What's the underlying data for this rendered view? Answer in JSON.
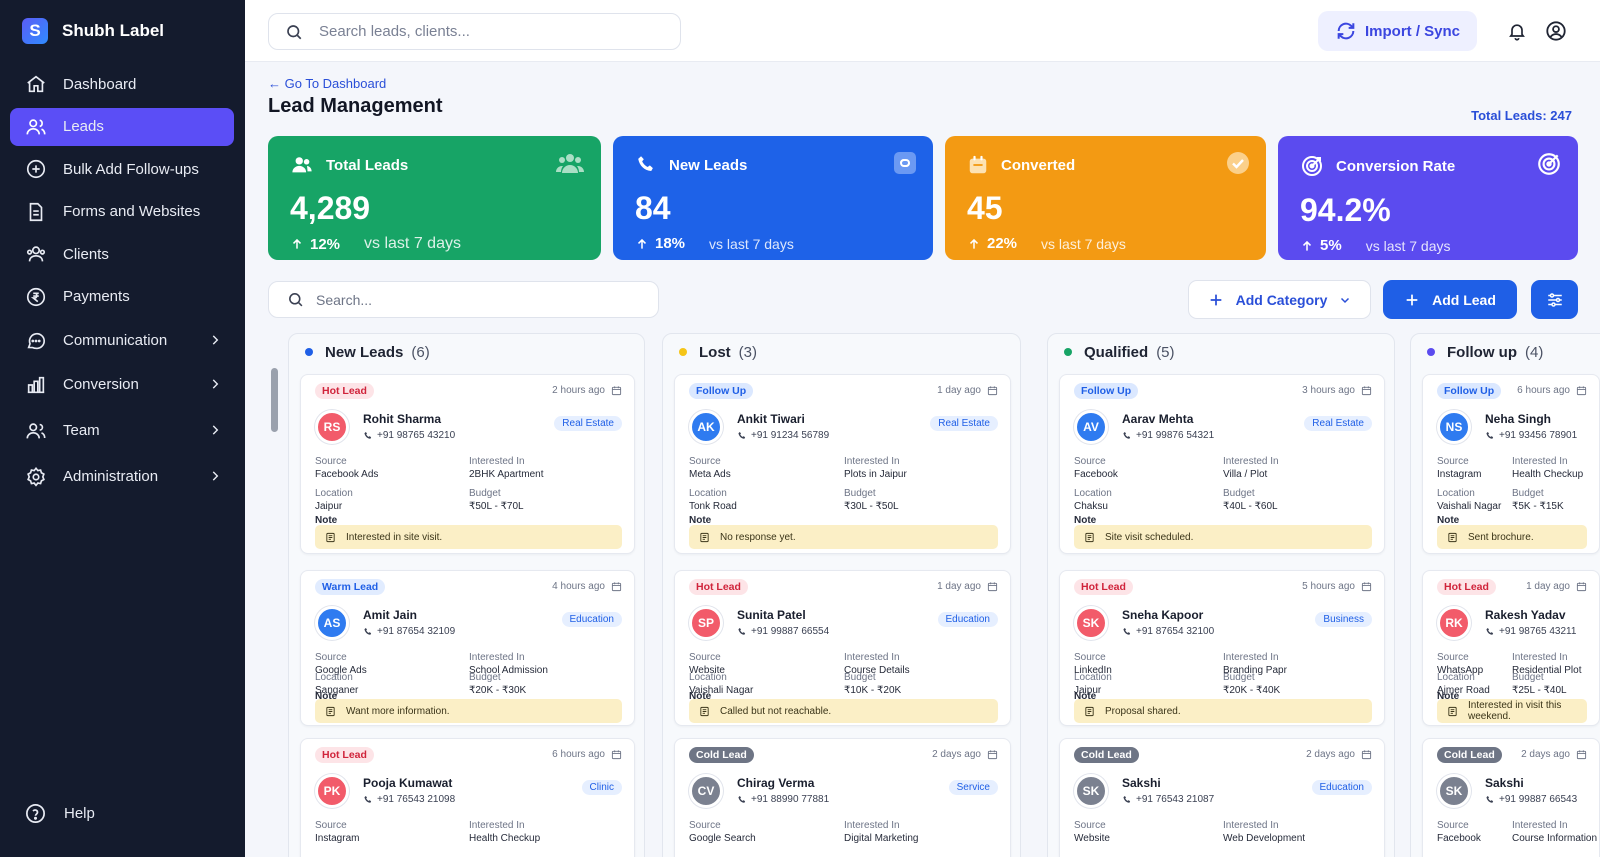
{
  "app": {
    "name": "Shubh Label",
    "logo_letter": "S"
  },
  "sidebar": {
    "items": [
      {
        "label": "Dashboard",
        "icon": "home-icon"
      },
      {
        "label": "Leads",
        "icon": "users-icon",
        "active": true
      },
      {
        "label": "Bulk Add Follow-ups",
        "icon": "plus-circle-icon"
      },
      {
        "label": "Forms and Websites",
        "icon": "document-icon"
      },
      {
        "label": "Clients",
        "icon": "clients-icon"
      },
      {
        "label": "Payments",
        "icon": "rupee-icon"
      },
      {
        "label": "Communication",
        "icon": "chat-icon",
        "submenu": true
      },
      {
        "label": "Conversion",
        "icon": "chart-icon",
        "submenu": true
      },
      {
        "label": "Team",
        "icon": "team-icon",
        "submenu": true
      },
      {
        "label": "Administration",
        "icon": "gear-icon",
        "submenu": true
      }
    ],
    "help": "Help"
  },
  "topbar": {
    "search_placeholder": "Search leads, clients...",
    "import_label": "Import / Sync"
  },
  "page": {
    "back_label": "← Go To Dashboard",
    "title": "Lead Management",
    "total_leads": "Total Leads: 247"
  },
  "stats": [
    {
      "label": "Total Leads",
      "value": "4,289",
      "change": "12%",
      "period": "vs last 7 days",
      "color": "#17a466"
    },
    {
      "label": "New Leads",
      "value": "84",
      "change": "18%",
      "period": "vs last 7 days",
      "color": "#1e62e8"
    },
    {
      "label": "Converted",
      "value": "45",
      "change": "22%",
      "period": "vs last 7 days",
      "color": "#f39a13"
    },
    {
      "label": "Conversion Rate",
      "value": "94.2%",
      "change": "5%",
      "period": "vs last 7 days",
      "color": "#5b4bef"
    }
  ],
  "toolbar": {
    "search_placeholder": "Search...",
    "add_category": "Add Category",
    "add_lead": "Add Lead"
  },
  "columns": [
    {
      "title": "New Leads",
      "count": "(6)",
      "dot": "#1f5fe6",
      "cards": [
        {
          "tag": "Hot Lead",
          "tag_type": "hot",
          "time": "2 hours ago",
          "initials": "RS",
          "av": "av-red",
          "name": "Rohit Sharma",
          "phone": "+91 98765 43210",
          "category": "Real Estate",
          "source": "Facebook Ads",
          "interested": "2BHK Apartment",
          "location": "Jaipur",
          "budget": "₹50L - ₹70L",
          "note": "Interested in site visit."
        },
        {
          "tag": "Warm Lead",
          "tag_type": "warm",
          "time": "4 hours ago",
          "initials": "AS",
          "av": "av-blue",
          "name": "Amit Jain",
          "phone": "+91 87654 32109",
          "category": "Education",
          "source": "Google Ads",
          "interested": "School Admission",
          "location": "Sanganer",
          "budget": "₹20K - ₹30K",
          "note": "Want more information."
        },
        {
          "tag": "Hot Lead",
          "tag_type": "hot",
          "time": "6 hours ago",
          "initials": "PK",
          "av": "av-red",
          "name": "Pooja Kumawat",
          "phone": "+91 76543 21098",
          "category": "Clinic",
          "source": "Instagram",
          "interested": "Health Checkup"
        }
      ]
    },
    {
      "title": "Lost",
      "count": "(3)",
      "dot": "#f5c518",
      "cards": [
        {
          "tag": "Follow Up",
          "tag_type": "follow",
          "time": "1 day ago",
          "initials": "AK",
          "av": "av-blue",
          "name": "Ankit Tiwari",
          "phone": "+91 91234 56789",
          "category": "Real Estate",
          "source": "Meta Ads",
          "interested": "Plots in Jaipur",
          "location": "Tonk Road",
          "budget": "₹30L - ₹50L",
          "note": "No response yet."
        },
        {
          "tag": "Hot Lead",
          "tag_type": "hot",
          "time": "1 day ago",
          "initials": "SP",
          "av": "av-red",
          "name": "Sunita Patel",
          "phone": "+91 99887 66554",
          "category": "Education",
          "source": "Website",
          "interested": "Course Details",
          "location": "Vaishali Nagar",
          "budget": "₹10K - ₹20K",
          "note": "Called but not reachable."
        },
        {
          "tag": "Cold Lead",
          "tag_type": "cold",
          "time": "2 days ago",
          "initials": "CV",
          "av": "av-gray",
          "name": "Chirag Verma",
          "phone": "+91 88990 77881",
          "category": "Service",
          "source": "Google Search",
          "interested": "Digital Marketing"
        }
      ]
    },
    {
      "title": "Qualified",
      "count": "(5)",
      "dot": "#17a466",
      "cards": [
        {
          "tag": "Follow Up",
          "tag_type": "follow",
          "time": "3 hours ago",
          "initials": "AV",
          "av": "av-blue",
          "name": "Aarav Mehta",
          "phone": "+91 99876 54321",
          "category": "Real Estate",
          "source": "Facebook",
          "interested": "Villa / Plot",
          "location": "Chaksu",
          "budget": "₹40L - ₹60L",
          "note": "Site visit scheduled."
        },
        {
          "tag": "Hot Lead",
          "tag_type": "hot",
          "time": "5 hours ago",
          "initials": "SK",
          "av": "av-red",
          "name": "Sneha Kapoor",
          "phone": "+91 87654 32100",
          "category": "Business",
          "source": "LinkedIn",
          "interested": "Branding Papr",
          "location": "Jaipur",
          "budget": "₹20K - ₹40K",
          "note": "Proposal shared."
        },
        {
          "tag": "Cold Lead",
          "tag_type": "cold",
          "time": "2 days ago",
          "initials": "SK",
          "av": "av-gray",
          "name": "Sakshi",
          "phone": "+91 76543 21087",
          "category": "Education",
          "source": "Website",
          "interested": "Web Development"
        }
      ]
    },
    {
      "title": "Follow up",
      "count": "(4)",
      "dot": "#5b4bef",
      "cards": [
        {
          "tag": "Follow Up",
          "tag_type": "follow",
          "time": "6 hours ago",
          "initials": "NS",
          "av": "av-blue",
          "name": "Neha Singh",
          "phone": "+91 93456 78901",
          "source": "Instagram",
          "interested": "Health Checkup",
          "location": "Vaishali Nagar",
          "budget": "₹5K - ₹15K",
          "note": "Sent brochure."
        },
        {
          "tag": "Hot Lead",
          "tag_type": "hot",
          "time": "1 day ago",
          "initials": "RK",
          "av": "av-red",
          "name": "Rakesh Yadav",
          "phone": "+91 98765 43211",
          "source": "WhatsApp",
          "interested": "Residential Plot",
          "location": "Ajmer Road",
          "budget": "₹25L - ₹40L",
          "note": "Interested in visit this weekend."
        },
        {
          "tag": "Cold Lead",
          "tag_type": "cold",
          "time": "2 days ago",
          "initials": "SK",
          "av": "av-gray",
          "name": "Sakshi",
          "phone": "+91 99887 66543",
          "source": "Facebook",
          "interested": "Course Information"
        }
      ]
    }
  ],
  "labels": {
    "source": "Source",
    "interested": "Interested In",
    "location": "Location",
    "budget": "Budget",
    "note": "Note"
  }
}
